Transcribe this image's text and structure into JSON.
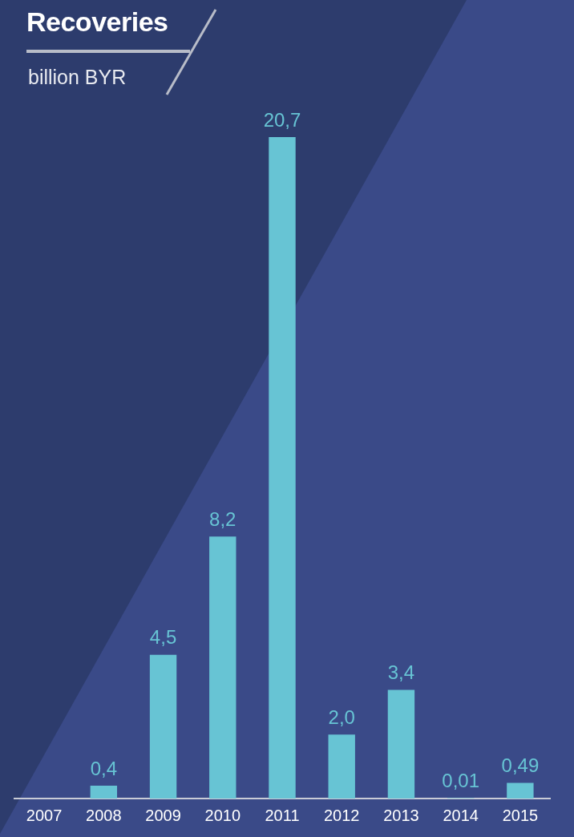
{
  "chart_data": {
    "type": "bar",
    "title": "Recoveries",
    "subtitle": "billion BYR",
    "categories": [
      "2007",
      "2008",
      "2009",
      "2010",
      "2011",
      "2012",
      "2013",
      "2014",
      "2015"
    ],
    "values": [
      null,
      0.4,
      4.5,
      8.2,
      20.7,
      2.0,
      3.4,
      0.01,
      0.49
    ],
    "value_labels": [
      null,
      "0,4",
      "4,5",
      "8,2",
      "20,7",
      "2,0",
      "3,4",
      "0,01",
      "0,49"
    ],
    "color": "#67c4d4",
    "grid": false,
    "legend": false
  }
}
